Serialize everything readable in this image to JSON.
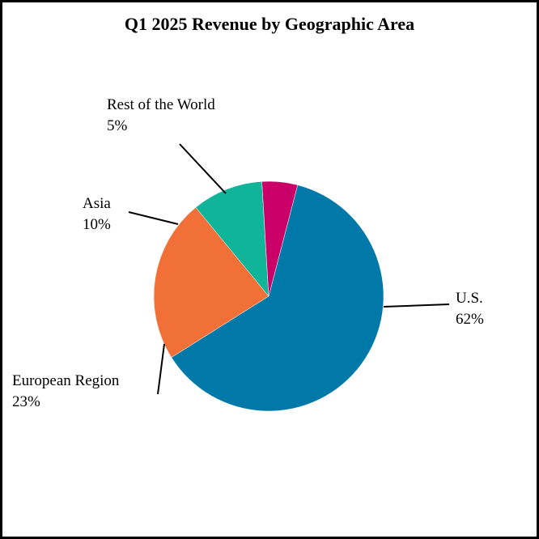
{
  "chart_data": {
    "type": "pie",
    "title": "Q1 2025 Revenue by Geographic Area",
    "slices": [
      {
        "label": "U.S.",
        "value_label": "62%",
        "value": 62,
        "color": "#0078A8"
      },
      {
        "label": "European Region",
        "value_label": "23%",
        "value": 23,
        "color": "#F07038"
      },
      {
        "label": "Asia",
        "value_label": "10%",
        "value": 10,
        "color": "#10B498"
      },
      {
        "label": "Rest of the World",
        "value_label": "5%",
        "value": 5,
        "color": "#C80068"
      }
    ],
    "legend": "none",
    "labels": "outside with leader lines"
  }
}
